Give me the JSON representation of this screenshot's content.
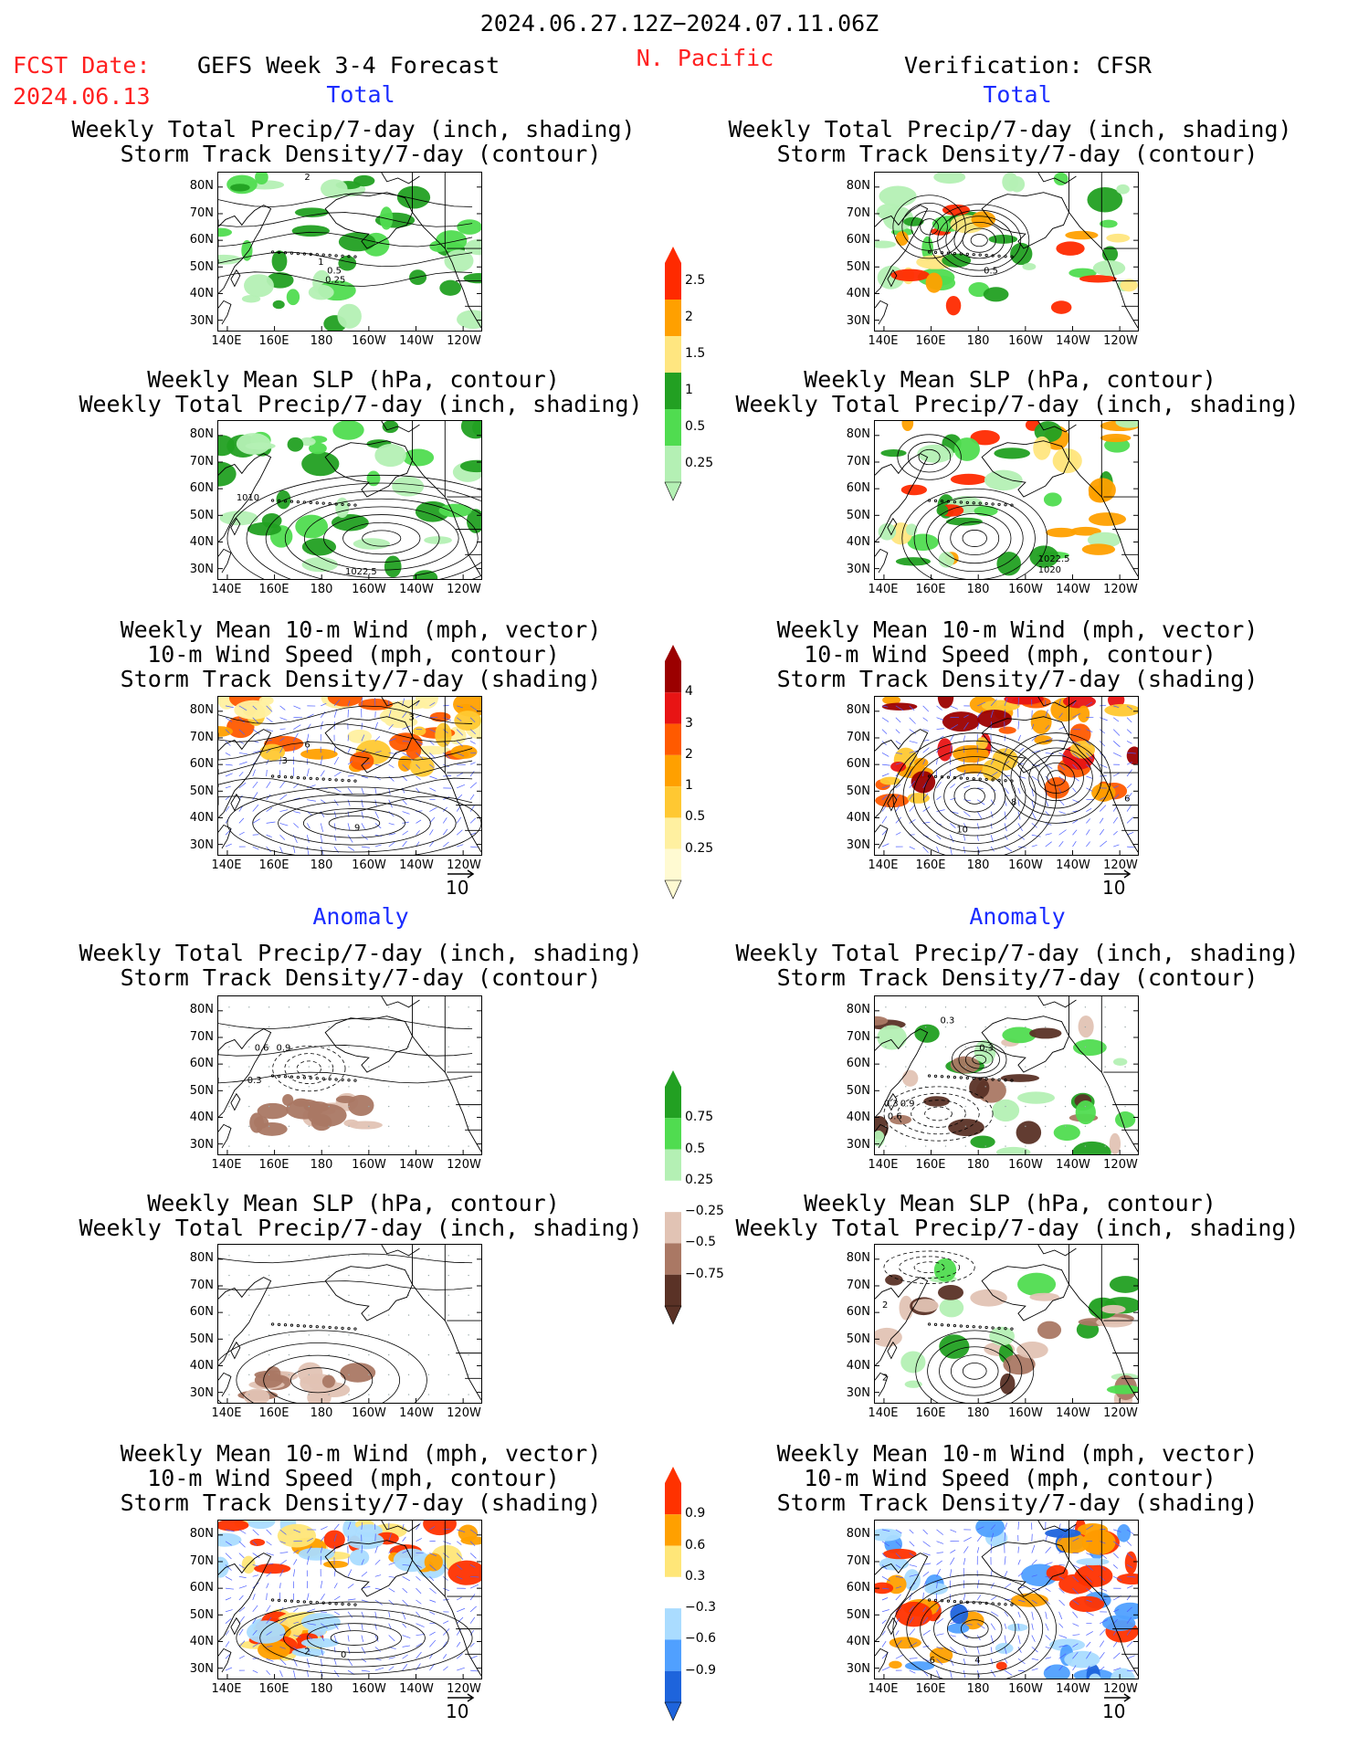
{
  "header": {
    "date_range": "2024.06.27.12Z−2024.07.11.06Z",
    "fcst_label": "FCST Date:",
    "fcst_date": "2024.06.13",
    "model": "GEFS Week 3-4 Forecast",
    "region": "N. Pacific",
    "verification": "Verification: CFSR"
  },
  "sections": {
    "total": "Total",
    "anomaly": "Anomaly"
  },
  "titles": {
    "p1": [
      "Weekly Total Precip/7-day (inch, shading)",
      "Storm Track Density/7-day (contour)"
    ],
    "p2": [
      "Weekly Mean SLP (hPa, contour)",
      "Weekly Total Precip/7-day (inch, shading)"
    ],
    "p3": [
      "Weekly Mean 10-m Wind (mph, vector)",
      "10-m Wind Speed (mph, contour)",
      "Storm Track Density/7-day (shading)"
    ]
  },
  "axes": {
    "lat": [
      "80N",
      "70N",
      "60N",
      "50N",
      "40N",
      "30N"
    ],
    "lon": [
      "140E",
      "160E",
      "180",
      "160W",
      "140W",
      "120W"
    ]
  },
  "contour_labels": {
    "L1": [
      "2",
      "1",
      "0.5",
      "0.25"
    ],
    "R1": [
      "0.5"
    ],
    "L2": [
      "1010",
      "1022.5"
    ],
    "R2": [
      "1022.5",
      "1020"
    ],
    "L3": [
      "3",
      "6",
      "3",
      "9"
    ],
    "R3": [
      "10",
      "6",
      "8"
    ],
    "L4": [
      "0.6",
      "0.9",
      "0.3"
    ],
    "R4": [
      "0.3",
      "0.3",
      "0.3",
      "0.9",
      "0.6"
    ],
    "R5": [
      "2",
      "2"
    ],
    "L6": [
      "2",
      "0"
    ],
    "R6": [
      "6",
      "4"
    ]
  },
  "vector_ref": "10",
  "colorbars": {
    "precip_total": {
      "labels": [
        "2.5",
        "2",
        "1.5",
        "1",
        "0.5",
        "0.25"
      ],
      "colors": [
        "#ff2a00",
        "#ffa000",
        "#ffe680",
        "#22a022",
        "#50dc50",
        "#b4f0b4"
      ]
    },
    "storm_total": {
      "labels": [
        "4",
        "3",
        "2",
        "1",
        "0.5",
        "0.25"
      ],
      "colors": [
        "#9b0000",
        "#e81414",
        "#ff5a00",
        "#ffa000",
        "#ffc832",
        "#fff0a0",
        "#fffad2"
      ]
    },
    "precip_anom": {
      "labels": [
        "0.75",
        "0.5",
        "0.25",
        "−0.25",
        "−0.5",
        "−0.75"
      ],
      "colors": [
        "#22a022",
        "#50dc50",
        "#b4f0b4",
        "#ffffff",
        "#e1c3b4",
        "#aa7864",
        "#5a3226"
      ]
    },
    "storm_anom": {
      "labels": [
        "0.9",
        "0.6",
        "0.3",
        "−0.3",
        "−0.6",
        "−0.9"
      ],
      "colors": [
        "#ff3200",
        "#ffa000",
        "#ffe678",
        "#ffffff",
        "#aadcff",
        "#50a0ff",
        "#1e64dc"
      ]
    }
  },
  "colors": {
    "accent_red": "#ff2020",
    "accent_blue": "#1a2cff"
  }
}
